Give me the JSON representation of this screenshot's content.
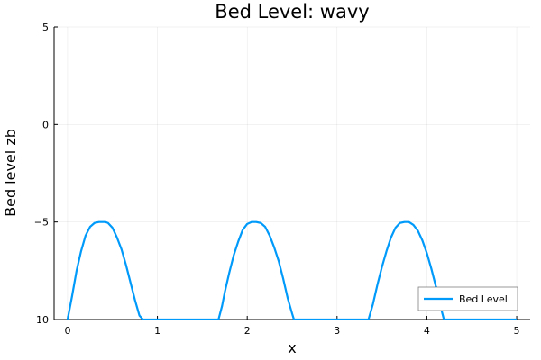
{
  "chart_data": {
    "type": "line",
    "title": "Bed Level: wavy",
    "xlabel": "x",
    "ylabel": "Bed level zb",
    "xlim": [
      -0.15,
      5.15
    ],
    "ylim": [
      -10,
      5
    ],
    "xticks": [
      0,
      1,
      2,
      3,
      4,
      5
    ],
    "yticks": [
      -10,
      -5,
      0,
      5
    ],
    "ytick_labels": [
      "−10",
      "−5",
      "0",
      "5"
    ],
    "grid": true,
    "legend_position": "bottom-right",
    "series": [
      {
        "name": "Bed Level",
        "color": "#009AFA",
        "x": [
          0.0,
          0.05,
          0.1,
          0.15,
          0.2,
          0.25,
          0.3,
          0.35,
          0.4,
          0.42,
          0.45,
          0.5,
          0.55,
          0.6,
          0.65,
          0.7,
          0.75,
          0.8,
          0.84,
          0.9,
          1.0,
          1.2,
          1.4,
          1.6,
          1.68,
          1.72,
          1.75,
          1.8,
          1.85,
          1.9,
          1.95,
          2.0,
          2.05,
          2.1,
          2.15,
          2.2,
          2.25,
          2.3,
          2.35,
          2.4,
          2.45,
          2.5,
          2.52,
          2.6,
          2.8,
          3.0,
          3.2,
          3.35,
          3.4,
          3.45,
          3.5,
          3.55,
          3.6,
          3.65,
          3.7,
          3.75,
          3.78,
          3.8,
          3.85,
          3.9,
          3.95,
          4.0,
          4.05,
          4.1,
          4.15,
          4.19,
          4.3,
          4.5,
          4.7,
          4.9,
          5.0
        ],
        "y": [
          -10.0,
          -8.8,
          -7.5,
          -6.5,
          -5.7,
          -5.25,
          -5.05,
          -5.0,
          -5.0,
          -5.0,
          -5.05,
          -5.3,
          -5.8,
          -6.4,
          -7.2,
          -8.1,
          -9.0,
          -9.8,
          -10.0,
          -10.0,
          -10.0,
          -10.0,
          -10.0,
          -10.0,
          -10.0,
          -9.3,
          -8.6,
          -7.6,
          -6.7,
          -6.0,
          -5.4,
          -5.1,
          -5.0,
          -5.0,
          -5.05,
          -5.25,
          -5.7,
          -6.3,
          -7.0,
          -7.9,
          -8.9,
          -9.7,
          -10.0,
          -10.0,
          -10.0,
          -10.0,
          -10.0,
          -10.0,
          -9.2,
          -8.2,
          -7.3,
          -6.5,
          -5.8,
          -5.3,
          -5.05,
          -5.0,
          -5.0,
          -5.0,
          -5.15,
          -5.45,
          -5.95,
          -6.6,
          -7.4,
          -8.3,
          -9.3,
          -10.0,
          -10.0,
          -10.0,
          -10.0,
          -10.0,
          -10.0
        ]
      }
    ]
  }
}
